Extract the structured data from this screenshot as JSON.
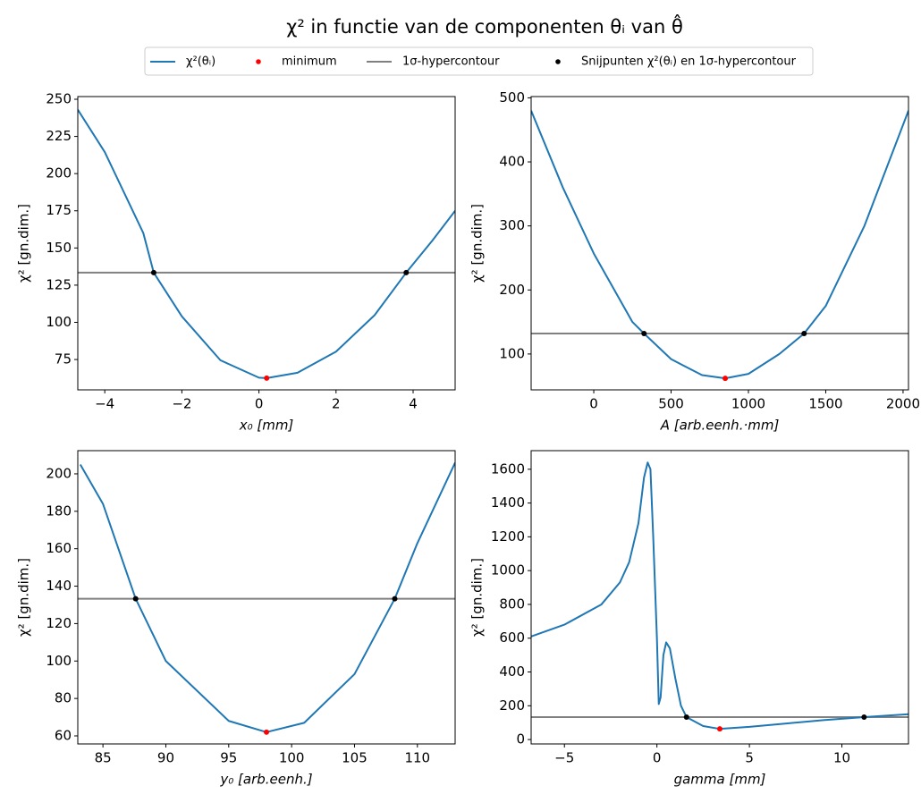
{
  "title": "χ² in functie van de componenten θᵢ van θ̂",
  "legend": [
    {
      "name": "χ²(θᵢ)",
      "color": "#1f77b4",
      "kind": "line"
    },
    {
      "name": "minimum",
      "color": "#ff0000",
      "kind": "dot"
    },
    {
      "name": "1σ-hypercontour",
      "color": "#808080",
      "kind": "line"
    },
    {
      "name": "Snijpunten χ²(θᵢ) en 1σ-hypercontour",
      "color": "#000000",
      "kind": "dot"
    }
  ],
  "chart_data": [
    {
      "type": "line",
      "xlabel": "x₀ [mm]",
      "ylabel": "χ² [gn.dim.]",
      "xlim": [
        -4.7,
        5.09
      ],
      "ylim": [
        54.6,
        251.8
      ],
      "xticks": [
        {
          "value": -4,
          "label": "−4"
        },
        {
          "value": -2,
          "label": "−2"
        },
        0,
        2,
        4
      ],
      "yticks": [
        75,
        100,
        125,
        150,
        175,
        200,
        225,
        250
      ],
      "curve": {
        "x": [
          -4.7,
          -4,
          -3,
          -2.73,
          -2,
          -1,
          0,
          0.2,
          1,
          2,
          3,
          3.82,
          4.5,
          5.09
        ],
        "values": [
          243,
          214.5,
          160,
          133.4,
          104,
          74.5,
          62.8,
          62.5,
          66.1,
          80.3,
          104.8,
          133.4,
          155,
          175
        ]
      },
      "minimum": {
        "x": 0.2,
        "y": 62.5
      },
      "contour": 133.4,
      "intersections": {
        "x": [
          -2.73,
          3.82
        ],
        "y": [
          133.4,
          133.4
        ]
      }
    },
    {
      "type": "line",
      "xlabel": "A [arb.eenh.·mm]",
      "ylabel": "χ² [gn.dim.]",
      "xlim": [
        -405,
        2035
      ],
      "ylim": [
        44,
        502
      ],
      "xticks": [
        0,
        500,
        1000,
        1500,
        2000
      ],
      "yticks": [
        100,
        200,
        300,
        400,
        500
      ],
      "curve": {
        "x": [
          -405,
          -200,
          0,
          250,
          325,
          500,
          700,
          850,
          1000,
          1200,
          1360,
          1500,
          1750,
          2035
        ],
        "values": [
          480,
          360,
          257,
          150,
          132,
          92,
          67,
          62,
          69,
          100,
          132,
          175,
          300,
          480
        ]
      },
      "minimum": {
        "x": 850,
        "y": 62
      },
      "contour": 132,
      "intersections": {
        "x": [
          325,
          1360
        ],
        "y": [
          132,
          132
        ]
      }
    },
    {
      "type": "line",
      "xlabel": "y₀ [arb.eenh.]",
      "ylabel": "χ² [gn.dim.]",
      "xlim": [
        83.0,
        113.0
      ],
      "ylim": [
        55.7,
        212.4
      ],
      "xticks": [
        85,
        90,
        95,
        100,
        105,
        110
      ],
      "yticks": [
        60,
        80,
        100,
        120,
        140,
        160,
        180,
        200
      ],
      "curve": {
        "x": [
          83.2,
          85,
          87.6,
          90,
          95,
          98,
          101,
          105,
          108.2,
          110,
          113
        ],
        "values": [
          205,
          184,
          133.3,
          100,
          68,
          62,
          67,
          93,
          133.3,
          163,
          206
        ]
      },
      "minimum": {
        "x": 98,
        "y": 62
      },
      "contour": 133.3,
      "intersections": {
        "x": [
          87.6,
          108.2
        ],
        "y": [
          133.3,
          133.3
        ]
      }
    },
    {
      "type": "line",
      "xlabel": "gamma [mm]",
      "ylabel": "χ² [gn.dim.]",
      "xlim": [
        -6.8,
        13.6
      ],
      "ylim": [
        -26,
        1710
      ],
      "xticks": [
        {
          "value": -5,
          "label": "−5"
        },
        0,
        5,
        10
      ],
      "yticks": [
        0,
        200,
        400,
        600,
        800,
        1000,
        1200,
        1400,
        1600
      ],
      "curve": {
        "x": [
          -6.8,
          -5,
          -3,
          -2,
          -1.5,
          -1,
          -0.7,
          -0.5,
          -0.35,
          -0.2,
          0,
          0.1,
          0.2,
          0.35,
          0.5,
          0.7,
          1,
          1.3,
          1.6,
          2.5,
          3.4,
          5,
          7,
          9,
          11.2,
          13.6
        ],
        "values": [
          610,
          680,
          800,
          930,
          1050,
          1280,
          1550,
          1640,
          1600,
          1200,
          600,
          210,
          250,
          500,
          575,
          540,
          360,
          200,
          133,
          80,
          63,
          75,
          95,
          115,
          133,
          150
        ]
      },
      "minimum": {
        "x": 3.4,
        "y": 63
      },
      "contour": 133,
      "intersections": {
        "x": [
          1.6,
          11.2
        ],
        "y": [
          133,
          133
        ]
      }
    }
  ]
}
